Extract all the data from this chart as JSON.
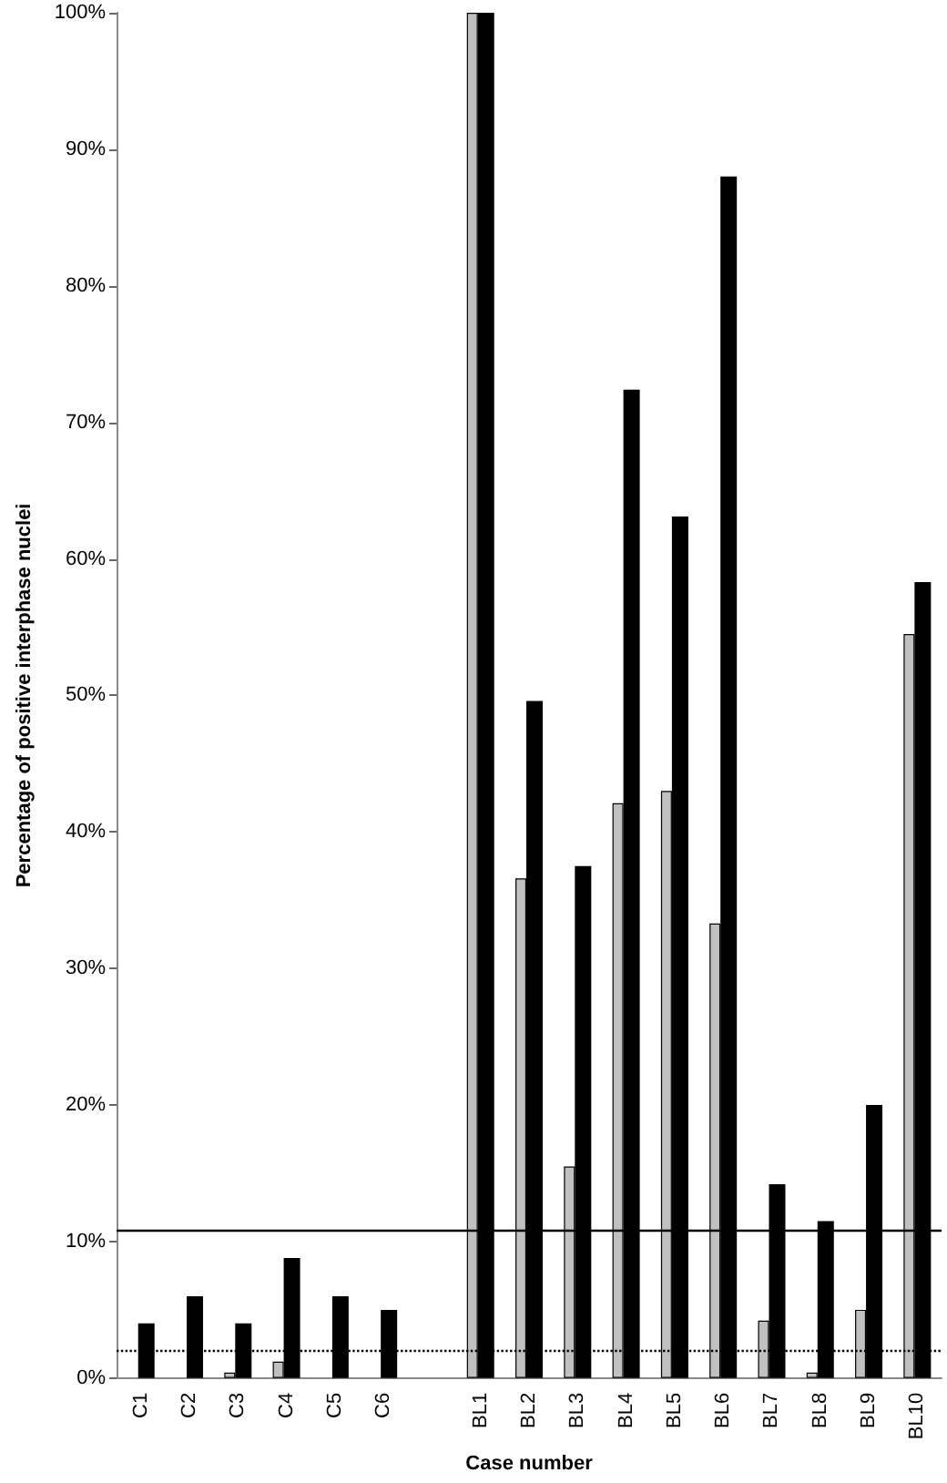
{
  "chart_data": {
    "type": "bar",
    "xlabel": "Case number",
    "ylabel": "Percentage of positive interphase nuclei",
    "categories": [
      "C1",
      "C2",
      "C3",
      "C4",
      "C5",
      "C6",
      null,
      "BL1",
      "BL2",
      "BL3",
      "BL4",
      "BL5",
      "BL6",
      "BL7",
      "BL8",
      "BL9",
      "BL10"
    ],
    "series": [
      {
        "color": "#c0c0c0",
        "values": [
          0,
          0,
          0.4,
          1.2,
          0,
          0,
          null,
          100,
          36.6,
          15.5,
          42.1,
          43,
          33.3,
          4.2,
          0.4,
          5,
          54.5
        ]
      },
      {
        "color": "#000000",
        "values": [
          4,
          6,
          4,
          8.8,
          6,
          5,
          null,
          100,
          49.6,
          37.5,
          72.4,
          63.1,
          88,
          14.2,
          11.5,
          20,
          58.3
        ]
      }
    ],
    "ylim": [
      0,
      100
    ],
    "yticks": [
      {
        "value": 0,
        "label": "0%"
      },
      {
        "value": 10,
        "label": "10%"
      },
      {
        "value": 20,
        "label": "20%"
      },
      {
        "value": 30,
        "label": "30%"
      },
      {
        "value": 40,
        "label": "40%"
      },
      {
        "value": 50,
        "label": "50%"
      },
      {
        "value": 60,
        "label": "60%"
      },
      {
        "value": 70,
        "label": "70%"
      },
      {
        "value": 80,
        "label": "80%"
      },
      {
        "value": 90,
        "label": "90%"
      },
      {
        "value": 100,
        "label": "100%"
      }
    ],
    "grid": false,
    "ref_lines": [
      {
        "axis": "y",
        "value": 10.8,
        "line_style": "solid",
        "color": "#000000"
      },
      {
        "axis": "y",
        "value": 2,
        "line_style": "dotted",
        "color": "#000000"
      }
    ]
  }
}
